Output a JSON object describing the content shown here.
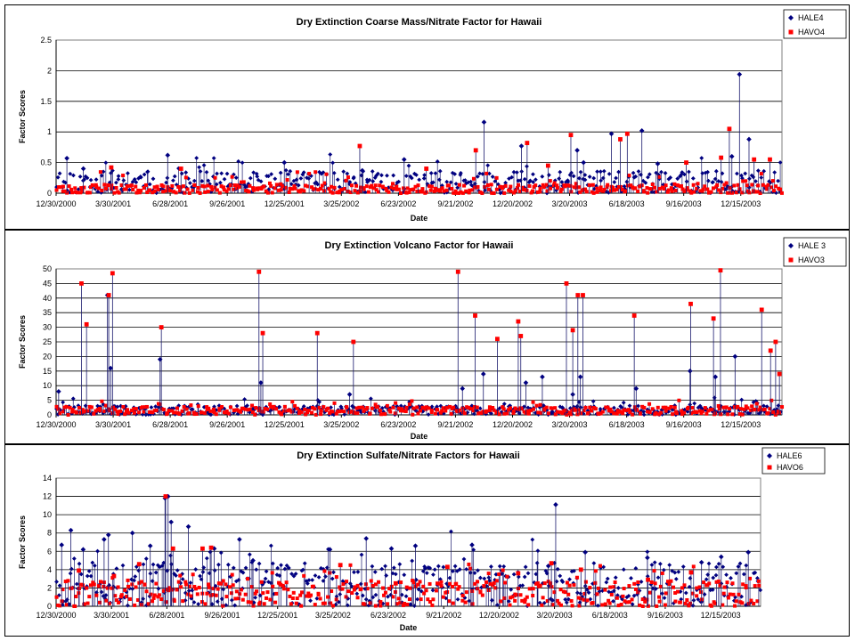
{
  "chart_data": [
    {
      "type": "scatter",
      "title": "Dry Extinction Coarse Mass/Nitrate Factor for Hawaii",
      "xlabel": "Date",
      "ylabel": "Factor Scores",
      "ylim": [
        0,
        2.5
      ],
      "yticks": [
        "0",
        "0.5",
        "1",
        "1.5",
        "2",
        "2.5"
      ],
      "ytick_values": [
        0,
        0.5,
        1,
        1.5,
        2,
        2.5
      ],
      "xticks": [
        "12/30/2000",
        "3/30/2001",
        "6/28/2001",
        "9/26/2001",
        "12/25/2001",
        "3/25/2002",
        "6/23/2002",
        "9/21/2002",
        "12/20/2002",
        "3/20/2003",
        "6/18/2003",
        "9/16/2003",
        "12/15/2003"
      ],
      "grid": true,
      "legend": "top-right",
      "series": [
        {
          "name": "HALE4",
          "color": "#000080",
          "marker": "diamond",
          "x": [
            "2001-01-16",
            "2001-02-11",
            "2001-06-24",
            "2001-12-25",
            "2002-04-27",
            "2002-07-02",
            "2002-11-05",
            "2003-01-03",
            "2003-04-01",
            "2003-04-11",
            "2003-05-25",
            "2003-07-12",
            "2003-08-06",
            "2003-12-01",
            "2003-12-13",
            "2003-12-28"
          ],
          "y": [
            0.57,
            0.4,
            0.62,
            0.5,
            0.37,
            0.55,
            1.16,
            0.77,
            0.7,
            0.5,
            0.97,
            1.02,
            0.48,
            0.6,
            1.94,
            0.88
          ]
        },
        {
          "name": "HAVO4",
          "color": "#ff0000",
          "marker": "square",
          "x": [
            "2001-03-27",
            "2001-07-15",
            "2002-04-23",
            "2002-08-06",
            "2002-10-23",
            "2003-01-12",
            "2003-02-14",
            "2003-03-22",
            "2003-06-08",
            "2003-06-19",
            "2003-09-20",
            "2003-11-14",
            "2003-11-27",
            "2004-01-05",
            "2004-01-30"
          ],
          "y": [
            0.42,
            0.4,
            0.77,
            0.4,
            0.7,
            0.82,
            0.45,
            0.95,
            0.88,
            0.97,
            0.5,
            0.58,
            1.05,
            0.55,
            0.55
          ]
        }
      ]
    },
    {
      "type": "scatter",
      "title": "Dry Extinction Volcano Factor for Hawaii",
      "xlabel": "Date",
      "ylabel": "Factor Scores",
      "ylim": [
        0,
        50
      ],
      "yticks": [
        "0",
        "5",
        "10",
        "15",
        "20",
        "25",
        "30",
        "35",
        "40",
        "45",
        "50"
      ],
      "ytick_values": [
        0,
        5,
        10,
        15,
        20,
        25,
        30,
        35,
        40,
        45,
        50
      ],
      "xticks": [
        "12/30/2000",
        "3/30/2001",
        "6/28/2001",
        "9/26/2001",
        "12/25/2001",
        "3/25/2002",
        "6/23/2002",
        "9/21/2002",
        "12/20/2002",
        "3/20/2003",
        "6/18/2003",
        "9/16/2003",
        "12/15/2003"
      ],
      "grid": true,
      "legend": "top-right",
      "series": [
        {
          "name": "HALE 3",
          "color": "#000080",
          "marker": "diamond",
          "x": [
            "2001-01-03",
            "2001-03-21",
            "2001-03-26",
            "2001-06-12",
            "2001-11-18",
            "2002-04-07",
            "2002-10-02",
            "2002-11-04",
            "2003-01-10",
            "2003-02-05",
            "2003-03-25",
            "2003-04-06",
            "2003-07-03",
            "2003-09-26",
            "2003-11-05",
            "2003-12-06"
          ],
          "y": [
            8,
            41,
            16,
            19,
            11,
            7,
            9,
            14,
            11,
            13,
            7,
            13,
            9,
            15,
            13,
            20
          ]
        },
        {
          "name": "HAVO3",
          "color": "#ff0000",
          "marker": "square",
          "x": [
            "2001-02-08",
            "2001-02-16",
            "2001-03-23",
            "2001-03-29",
            "2001-06-14",
            "2001-11-15",
            "2001-11-21",
            "2002-02-15",
            "2002-04-13",
            "2002-09-25",
            "2002-10-22",
            "2002-11-26",
            "2002-12-29",
            "2003-01-02",
            "2003-03-15",
            "2003-03-25",
            "2003-04-02",
            "2003-04-10",
            "2003-06-30",
            "2003-09-27",
            "2003-11-02",
            "2003-11-13",
            "2004-01-17",
            "2004-01-31",
            "2004-02-08",
            "2004-02-14"
          ],
          "y": [
            45,
            31,
            41,
            48.5,
            30,
            49,
            28,
            28,
            25,
            49,
            34,
            26,
            32,
            27,
            45,
            29,
            41,
            41,
            34,
            38,
            33,
            49.5,
            36,
            22,
            25,
            14
          ]
        }
      ]
    },
    {
      "type": "scatter",
      "title": "Dry Extinction Sulfate/Nitrate Factors for Hawaii",
      "xlabel": "Date",
      "ylabel": "Factor Scores",
      "ylim": [
        0,
        14
      ],
      "yticks": [
        "0",
        "2",
        "4",
        "6",
        "8",
        "10",
        "12",
        "14"
      ],
      "ytick_values": [
        0,
        2,
        4,
        6,
        8,
        10,
        12,
        14
      ],
      "xticks": [
        "12/30/2000",
        "3/30/2001",
        "6/28/2001",
        "9/26/2001",
        "12/25/2001",
        "3/25/2002",
        "6/23/2002",
        "9/21/2002",
        "12/20/2002",
        "3/20/2003",
        "6/18/2003",
        "9/16/2003",
        "12/15/2003"
      ],
      "grid": true,
      "legend": "top-right",
      "series": [
        {
          "name": "HALE6",
          "color": "#000080",
          "marker": "diamond",
          "x": [
            "2001-01-08",
            "2001-01-23",
            "2001-02-12",
            "2001-03-18",
            "2001-03-25",
            "2001-05-03",
            "2001-06-01",
            "2001-06-25",
            "2001-06-30",
            "2001-07-05",
            "2001-08-02",
            "2001-09-13",
            "2001-10-24",
            "2001-11-15",
            "2002-03-20",
            "2002-05-18",
            "2002-06-28",
            "2002-08-06",
            "2002-11-06",
            "2003-03-10",
            "2003-03-22",
            "2003-05-09",
            "2003-08-18",
            "2003-11-14",
            "2003-12-16",
            "2004-01-29"
          ],
          "y": [
            6.7,
            8.3,
            6.2,
            7.3,
            7.8,
            8.0,
            6.6,
            11.8,
            12.0,
            9.2,
            8.7,
            6.3,
            7.3,
            5.0,
            6.2,
            7.4,
            6.3,
            6.6,
            6.7,
            4.4,
            11.1,
            5.9,
            5.3,
            4.8,
            5.4,
            5.9
          ]
        },
        {
          "name": "HAVO6",
          "color": "#ff0000",
          "marker": "square",
          "x": [
            "2001-02-05",
            "2001-04-03",
            "2001-05-14",
            "2001-06-26",
            "2001-07-08",
            "2001-08-25",
            "2001-09-08",
            "2002-04-06",
            "2002-07-05",
            "2002-09-27",
            "2003-01-20",
            "2003-03-15",
            "2003-05-02",
            "2003-08-19",
            "2003-10-28"
          ],
          "y": [
            3.9,
            3.3,
            4.6,
            12.0,
            6.3,
            6.3,
            6.4,
            4.5,
            2.5,
            4.3,
            3.6,
            4.7,
            4.0,
            2.9,
            3.7
          ]
        }
      ]
    }
  ]
}
